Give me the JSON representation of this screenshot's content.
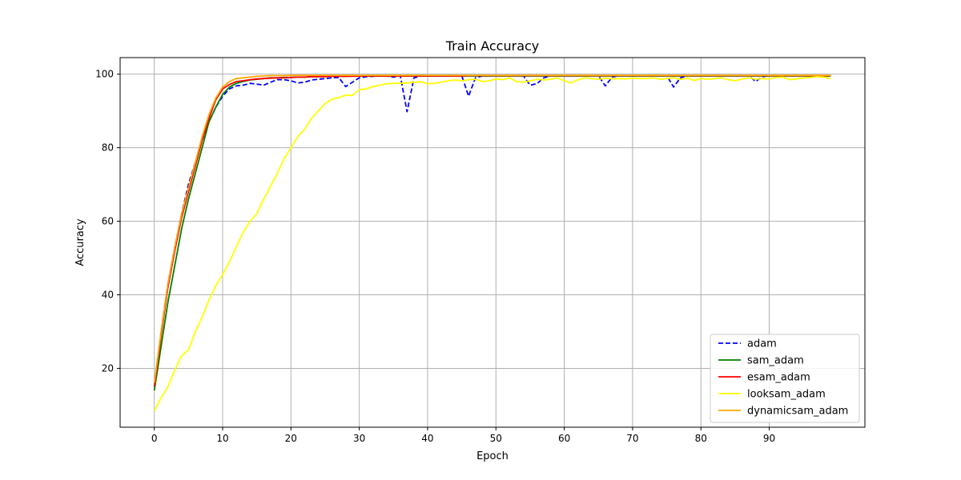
{
  "chart_data": {
    "type": "line",
    "title": "Train Accuracy",
    "xlabel": "Epoch",
    "ylabel": "Accuracy",
    "xlim": [
      -5,
      104
    ],
    "ylim": [
      4,
      104.5
    ],
    "xticks": [
      0,
      10,
      20,
      30,
      40,
      50,
      60,
      70,
      80,
      90
    ],
    "yticks": [
      20,
      40,
      60,
      80,
      100
    ],
    "grid": true,
    "legend_position": "lower right",
    "series": [
      {
        "name": "adam",
        "color": "#0000ff",
        "dashed": true,
        "x": [
          0,
          1,
          2,
          3,
          4,
          5,
          6,
          7,
          8,
          9,
          10,
          11,
          12,
          13,
          14,
          15,
          16,
          17,
          18,
          19,
          20,
          21,
          22,
          23,
          24,
          25,
          26,
          27,
          28,
          29,
          30,
          31,
          32,
          33,
          34,
          35,
          36,
          37,
          38,
          39,
          40,
          41,
          42,
          43,
          44,
          45,
          46,
          47,
          48,
          49,
          50,
          51,
          52,
          53,
          54,
          55,
          56,
          57,
          58,
          59,
          60,
          61,
          62,
          63,
          64,
          65,
          66,
          67,
          68,
          69,
          70,
          71,
          72,
          73,
          74,
          75,
          76,
          77,
          78,
          79,
          80,
          81,
          82,
          83,
          84,
          85,
          86,
          87,
          88,
          89,
          90,
          91,
          92,
          93,
          94,
          95,
          96,
          97,
          98,
          99
        ],
        "values": [
          15,
          30,
          43,
          53,
          62,
          70,
          76,
          82,
          87,
          91,
          94,
          96,
          96.8,
          97,
          97.5,
          97.3,
          97,
          97.8,
          98.5,
          98.5,
          98.2,
          97.6,
          97.8,
          98.4,
          98.6,
          98.8,
          99.0,
          99.1,
          96.6,
          97.8,
          99.0,
          99.3,
          99.4,
          99.5,
          99.5,
          99.2,
          99.6,
          89.8,
          99.0,
          99.5,
          99.6,
          99.6,
          99.6,
          99.6,
          99.6,
          99.6,
          94.0,
          99.0,
          99.5,
          99.6,
          99.6,
          99.6,
          99.6,
          99.6,
          99.6,
          97.0,
          97.4,
          99.0,
          99.6,
          99.6,
          99.6,
          99.6,
          99.6,
          99.6,
          99.6,
          99.6,
          96.8,
          99.2,
          99.6,
          99.6,
          99.6,
          99.6,
          99.6,
          99.6,
          99.6,
          99.6,
          96.5,
          99.0,
          99.6,
          99.6,
          99.6,
          99.6,
          99.6,
          99.6,
          99.6,
          99.6,
          99.6,
          99.6,
          98.0,
          99.3,
          99.6,
          99.6,
          99.6,
          99.6,
          99.6,
          99.6,
          99.6,
          99.6,
          99.6,
          99.6
        ]
      },
      {
        "name": "sam_adam",
        "color": "#008000",
        "dashed": false,
        "x": [
          0,
          1,
          2,
          3,
          4,
          5,
          6,
          7,
          8,
          9,
          10,
          11,
          12,
          13,
          14,
          15,
          16,
          17,
          18,
          19,
          20,
          21,
          22,
          23,
          24,
          25,
          26,
          27,
          28,
          29,
          30,
          31,
          32,
          33,
          34,
          35,
          36,
          37,
          38,
          39,
          40,
          41,
          42,
          43,
          44,
          45,
          46,
          47,
          48,
          49,
          50,
          51,
          52,
          53,
          54,
          55,
          56,
          57,
          58,
          59,
          60,
          61,
          62,
          63,
          64,
          65,
          66,
          67,
          68,
          69,
          70,
          71,
          72,
          73,
          74,
          75,
          76,
          77,
          78,
          79,
          80,
          81,
          82,
          83,
          84,
          85,
          86,
          87,
          88,
          89,
          90,
          91,
          92,
          93,
          94,
          95,
          96,
          97,
          98,
          99
        ],
        "values": [
          14,
          26,
          38,
          48,
          58,
          66,
          73,
          80,
          87,
          91,
          94.5,
          96.5,
          97.5,
          98,
          98.4,
          98.6,
          98.8,
          99,
          99,
          99.1,
          99.1,
          99.2,
          99.2,
          99.3,
          99.3,
          99.4,
          99.4,
          99.4,
          99.4,
          99.5,
          99.5,
          99.5,
          99.5,
          99.5,
          99.5,
          99.5,
          99.5,
          99.5,
          99.5,
          99.5,
          99.5,
          99.5,
          99.5,
          99.5,
          99.5,
          99.5,
          99.5,
          99.5,
          99.5,
          99.5,
          99.5,
          99.5,
          99.5,
          99.5,
          99.5,
          99.5,
          99.5,
          99.5,
          99.5,
          99.5,
          99.5,
          99.5,
          99.5,
          99.5,
          99.5,
          99.5,
          99.5,
          99.5,
          99.5,
          99.5,
          99.5,
          99.5,
          99.5,
          99.5,
          99.5,
          99.5,
          99.5,
          99.5,
          99.5,
          99.5,
          99.5,
          99.5,
          99.5,
          99.5,
          99.5,
          99.5,
          99.5,
          99.5,
          99.5,
          99.5,
          99.5,
          99.5,
          99.5,
          99.5,
          99.5,
          99.5,
          99.5,
          99.5,
          99.5,
          99.5
        ]
      },
      {
        "name": "esam_adam",
        "color": "#ff0000",
        "dashed": false,
        "x": [
          0,
          1,
          2,
          3,
          4,
          5,
          6,
          7,
          8,
          9,
          10,
          11,
          12,
          13,
          14,
          15,
          16,
          17,
          18,
          19,
          20,
          21,
          22,
          23,
          24,
          25,
          26,
          27,
          28,
          29,
          30,
          31,
          32,
          33,
          34,
          35,
          36,
          37,
          38,
          39,
          40,
          41,
          42,
          43,
          44,
          45,
          46,
          47,
          48,
          49,
          50,
          51,
          52,
          53,
          54,
          55,
          56,
          57,
          58,
          59,
          60,
          61,
          62,
          63,
          64,
          65,
          66,
          67,
          68,
          69,
          70,
          71,
          72,
          73,
          74,
          75,
          76,
          77,
          78,
          79,
          80,
          81,
          82,
          83,
          84,
          85,
          86,
          87,
          88,
          89,
          90,
          91,
          92,
          93,
          94,
          95,
          96,
          97,
          98,
          99
        ],
        "values": [
          15,
          29,
          42,
          52,
          61,
          68,
          75,
          82,
          88,
          93,
          96,
          97.2,
          98,
          98.2,
          98.5,
          98.7,
          98.8,
          98.9,
          99,
          99,
          99.1,
          99.2,
          99.2,
          99.3,
          99.3,
          99.3,
          99.4,
          99.4,
          99.4,
          99.4,
          99.5,
          99.5,
          99.5,
          99.5,
          99.5,
          99.5,
          99.5,
          99.5,
          99.5,
          99.5,
          99.5,
          99.5,
          99.5,
          99.5,
          99.5,
          99.5,
          99.6,
          99.6,
          99.6,
          99.6,
          99.6,
          99.6,
          99.6,
          99.6,
          99.6,
          99.6,
          99.6,
          99.6,
          99.6,
          99.6,
          99.6,
          99.6,
          99.6,
          99.6,
          99.6,
          99.6,
          99.6,
          99.6,
          99.6,
          99.6,
          99.6,
          99.6,
          99.6,
          99.6,
          99.6,
          99.6,
          99.6,
          99.6,
          99.6,
          99.6,
          99.6,
          99.6,
          99.6,
          99.6,
          99.6,
          99.6,
          99.6,
          99.6,
          99.6,
          99.6,
          99.6,
          99.6,
          99.6,
          99.6,
          99.6,
          99.6,
          99.6,
          99.6,
          99.6,
          99.6
        ]
      },
      {
        "name": "looksam_adam",
        "color": "#ffff00",
        "dashed": false,
        "x": [
          0,
          1,
          2,
          3,
          4,
          5,
          6,
          7,
          8,
          9,
          10,
          11,
          12,
          13,
          14,
          15,
          16,
          17,
          18,
          19,
          20,
          21,
          22,
          23,
          24,
          25,
          26,
          27,
          28,
          29,
          30,
          31,
          32,
          33,
          34,
          35,
          36,
          37,
          38,
          39,
          40,
          41,
          42,
          43,
          44,
          45,
          46,
          47,
          48,
          49,
          50,
          51,
          52,
          53,
          54,
          55,
          56,
          57,
          58,
          59,
          60,
          61,
          62,
          63,
          64,
          65,
          66,
          67,
          68,
          69,
          70,
          71,
          72,
          73,
          74,
          75,
          76,
          77,
          78,
          79,
          80,
          81,
          82,
          83,
          84,
          85,
          86,
          87,
          88,
          89,
          90,
          91,
          92,
          93,
          94,
          95,
          96,
          97,
          98,
          99
        ],
        "values": [
          8.5,
          12,
          15,
          19.5,
          23.5,
          25,
          30,
          34,
          38.5,
          42.5,
          45.5,
          49,
          53,
          57,
          60,
          62,
          66,
          69.5,
          73,
          77,
          80,
          83,
          85,
          88,
          90,
          92,
          93.2,
          93.6,
          94.3,
          94.2,
          95.8,
          96,
          96.6,
          97,
          97.4,
          97.5,
          97.5,
          97.6,
          97.8,
          97.9,
          97.4,
          97.5,
          97.8,
          98.2,
          98.4,
          98.2,
          98.5,
          98.6,
          98,
          98.2,
          98.7,
          98.5,
          99,
          98,
          97.8,
          98.2,
          98.6,
          98.4,
          98.6,
          99,
          98.2,
          97.6,
          98.5,
          99,
          98.8,
          98.6,
          98.9,
          98.7,
          98.8,
          98.7,
          98.9,
          98.8,
          98.8,
          99,
          98.6,
          98.8,
          99,
          98.6,
          98.9,
          98.3,
          98.8,
          98.6,
          98.8,
          99,
          98.5,
          98.2,
          98.7,
          99,
          98.6,
          98.8,
          98.7,
          99.1,
          99.2,
          98.5,
          98.7,
          99,
          99.1,
          99.3,
          99.2,
          98.8
        ]
      },
      {
        "name": "dynamicsam_adam",
        "color": "#ffa500",
        "dashed": false,
        "x": [
          0,
          1,
          2,
          3,
          4,
          5,
          6,
          7,
          8,
          9,
          10,
          11,
          12,
          13,
          14,
          15,
          16,
          17,
          18,
          19,
          20,
          21,
          22,
          23,
          24,
          25,
          26,
          27,
          28,
          29,
          30,
          31,
          32,
          33,
          34,
          35,
          36,
          37,
          38,
          39,
          40,
          41,
          42,
          43,
          44,
          45,
          46,
          47,
          48,
          49,
          50,
          51,
          52,
          53,
          54,
          55,
          56,
          57,
          58,
          59,
          60,
          61,
          62,
          63,
          64,
          65,
          66,
          67,
          68,
          69,
          70,
          71,
          72,
          73,
          74,
          75,
          76,
          77,
          78,
          79,
          80,
          81,
          82,
          83,
          84,
          85,
          86,
          87,
          88,
          89,
          90,
          91,
          92,
          93,
          94,
          95,
          96,
          97,
          98,
          99
        ],
        "values": [
          16,
          30,
          43,
          53,
          62,
          69,
          76,
          83,
          89,
          93.5,
          96.5,
          98,
          98.8,
          99,
          99.2,
          99.4,
          99.5,
          99.6,
          99.6,
          99.6,
          99.7,
          99.7,
          99.7,
          99.7,
          99.7,
          99.7,
          99.7,
          99.7,
          99.7,
          99.7,
          99.7,
          99.7,
          99.7,
          99.7,
          99.7,
          99.7,
          99.7,
          99.7,
          99.7,
          99.7,
          99.7,
          99.7,
          99.7,
          99.7,
          99.7,
          99.7,
          99.7,
          99.7,
          99.7,
          99.7,
          99.7,
          99.7,
          99.7,
          99.7,
          99.7,
          99.7,
          99.7,
          99.7,
          99.7,
          99.7,
          99.7,
          99.7,
          99.7,
          99.7,
          99.7,
          99.7,
          99.7,
          99.7,
          99.7,
          99.7,
          99.7,
          99.7,
          99.7,
          99.7,
          99.7,
          99.7,
          99.7,
          99.7,
          99.7,
          99.7,
          99.7,
          99.7,
          99.7,
          99.7,
          99.7,
          99.7,
          99.7,
          99.7,
          99.7,
          99.7,
          99.7,
          99.7,
          99.7,
          99.7,
          99.7,
          99.7,
          99.7,
          99.7,
          99.7,
          99.7
        ]
      }
    ]
  }
}
